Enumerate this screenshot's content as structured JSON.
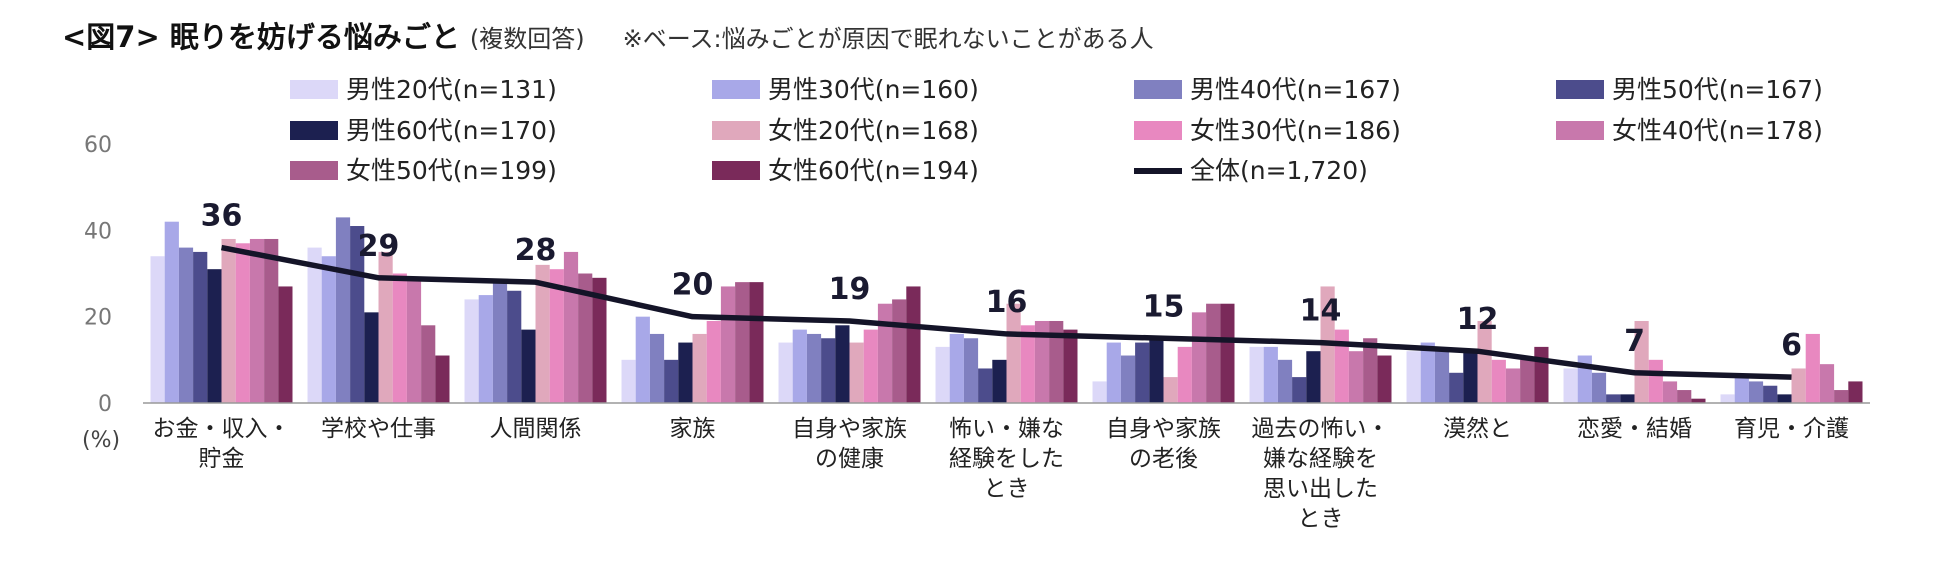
{
  "title": {
    "main": "<図7> 眠りを妨げる悩みごと",
    "sub": "(複数回答)",
    "note": "※ベース:悩みごとが原因で眠れないことがある人"
  },
  "colors": {
    "series": [
      "#dcd8f8",
      "#a8a8e8",
      "#8080c0",
      "#4c4c8c",
      "#1c2050",
      "#e0a8bc",
      "#e888c0",
      "#c878ac",
      "#a85c8c",
      "#7a2a5a"
    ],
    "total_line": "#141428"
  },
  "chart_data": {
    "type": "bar",
    "y_unit_label": "(%)",
    "ylim": [
      0,
      60
    ],
    "yticks": [
      0,
      20,
      40,
      60
    ],
    "categories": [
      "お金・収入・\n貯金",
      "学校や仕事",
      "人間関係",
      "家族",
      "自身や家族\nの健康",
      "怖い・嫌な\n経験をした\nとき",
      "自身や家族\nの老後",
      "過去の怖い・\n嫌な経験を\n思い出した\nとき",
      "漠然と",
      "恋愛・結婚",
      "育児・介護"
    ],
    "series": [
      {
        "name": "男性20代(n=131)",
        "values": [
          34,
          36,
          24,
          10,
          14,
          13,
          5,
          13,
          12,
          8,
          2
        ]
      },
      {
        "name": "男性30代(n=160)",
        "values": [
          42,
          34,
          25,
          20,
          17,
          16,
          14,
          13,
          14,
          11,
          6
        ]
      },
      {
        "name": "男性40代(n=167)",
        "values": [
          36,
          43,
          28,
          16,
          16,
          15,
          11,
          10,
          12,
          7,
          5
        ]
      },
      {
        "name": "男性50代(n=167)",
        "values": [
          35,
          41,
          26,
          10,
          15,
          8,
          14,
          6,
          7,
          2,
          4
        ]
      },
      {
        "name": "男性60代(n=170)",
        "values": [
          31,
          21,
          17,
          14,
          18,
          10,
          15,
          12,
          12,
          2,
          2
        ]
      },
      {
        "name": "女性20代(n=168)",
        "values": [
          38,
          35,
          32,
          16,
          14,
          23,
          6,
          27,
          19,
          19,
          8
        ]
      },
      {
        "name": "女性30代(n=186)",
        "values": [
          37,
          30,
          31,
          19,
          17,
          18,
          13,
          17,
          10,
          10,
          16
        ]
      },
      {
        "name": "女性40代(n=178)",
        "values": [
          38,
          29,
          35,
          27,
          23,
          19,
          21,
          12,
          8,
          5,
          9
        ]
      },
      {
        "name": "女性50代(n=199)",
        "values": [
          38,
          18,
          30,
          28,
          24,
          19,
          23,
          15,
          10,
          3,
          3
        ]
      },
      {
        "name": "女性60代(n=194)",
        "values": [
          27,
          11,
          29,
          28,
          27,
          17,
          23,
          11,
          13,
          1,
          5
        ]
      }
    ],
    "line": {
      "name": "全体(n=1,720)",
      "values": [
        36,
        29,
        28,
        20,
        19,
        16,
        15,
        14,
        12,
        7,
        6
      ]
    },
    "legend_position": "top",
    "grid": false
  }
}
